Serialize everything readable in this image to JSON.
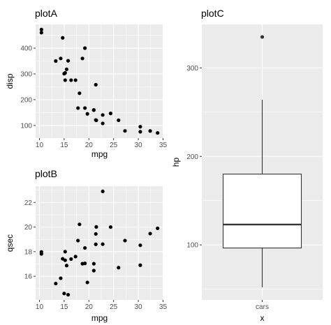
{
  "chart_data": [
    {
      "type": "scatter",
      "title": "plotA",
      "xlabel": "mpg",
      "ylabel": "disp",
      "xlim": [
        10.4,
        33.9
      ],
      "ylim": [
        71.1,
        472
      ],
      "xticks": [
        10,
        15,
        20,
        25,
        30,
        35
      ],
      "yticks": [
        100,
        200,
        300,
        400
      ],
      "grid": true,
      "series": [
        {
          "x": [
            21.0,
            21.0,
            22.8,
            21.4,
            18.7,
            18.1,
            14.3,
            24.4,
            22.8,
            19.2,
            17.8,
            16.4,
            17.3,
            15.2,
            10.4,
            10.4,
            14.7,
            32.4,
            30.4,
            33.9,
            21.5,
            15.5,
            15.2,
            13.3,
            19.2,
            27.3,
            26.0,
            30.4,
            15.8,
            19.7,
            15.0,
            21.4
          ],
          "y": [
            160,
            160,
            108,
            258,
            360,
            225,
            360,
            146.7,
            140.8,
            167.6,
            167.6,
            275.8,
            275.8,
            275.8,
            472,
            460,
            440,
            78.7,
            75.7,
            71.1,
            120.1,
            318,
            304,
            350,
            400,
            79,
            120.3,
            95.1,
            351,
            145,
            301,
            121
          ]
        }
      ]
    },
    {
      "type": "scatter",
      "title": "plotB",
      "xlabel": "mpg",
      "ylabel": "qsec",
      "xlim": [
        10.4,
        33.9
      ],
      "ylim": [
        14.5,
        22.9
      ],
      "xticks": [
        10,
        15,
        20,
        25,
        30,
        35
      ],
      "yticks": [
        16,
        18,
        20,
        22
      ],
      "grid": true,
      "series": [
        {
          "x": [
            21.0,
            21.0,
            22.8,
            21.4,
            18.7,
            18.1,
            14.3,
            24.4,
            22.8,
            19.2,
            17.8,
            16.4,
            17.3,
            15.2,
            10.4,
            10.4,
            14.7,
            32.4,
            30.4,
            33.9,
            21.5,
            15.5,
            15.2,
            13.3,
            19.2,
            27.3,
            26.0,
            30.4,
            15.8,
            19.7,
            15.0,
            21.4
          ],
          "y": [
            16.46,
            17.02,
            18.61,
            19.44,
            17.02,
            20.22,
            15.84,
            20.0,
            22.9,
            18.3,
            18.9,
            17.4,
            17.6,
            18.0,
            17.98,
            17.82,
            17.42,
            19.47,
            18.52,
            19.9,
            20.01,
            16.87,
            17.3,
            15.41,
            17.05,
            18.9,
            16.7,
            16.9,
            14.5,
            15.5,
            14.6,
            18.6
          ]
        }
      ]
    },
    {
      "type": "box",
      "title": "plotC",
      "xlabel": "x",
      "ylabel": "hp",
      "categories": [
        "cars"
      ],
      "ylim": [
        52,
        335
      ],
      "yticks": [
        100,
        200,
        300
      ],
      "grid": true,
      "box": {
        "min": 52,
        "q1": 96.5,
        "median": 123,
        "q3": 180,
        "whisker_high": 264,
        "outliers": [
          335
        ]
      }
    }
  ]
}
